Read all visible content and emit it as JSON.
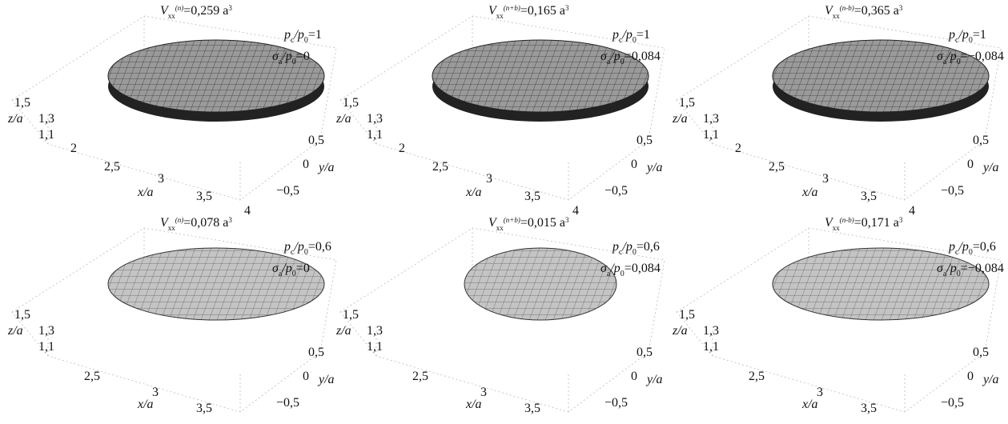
{
  "panels": [
    {
      "volume": [
        "V",
        "xx",
        "(n)",
        "=0,259 a",
        "3"
      ],
      "pressure": [
        "p",
        "c",
        "/p",
        "0",
        "=1"
      ],
      "stress": [
        "σ",
        "a",
        "/p",
        "0",
        "=0"
      ],
      "z_ticks": [
        "1,5",
        "1,3",
        "1,1"
      ],
      "x_ticks": [
        "2",
        "2,5",
        "3",
        "3,5",
        "4"
      ],
      "y_ticks": [
        "0,5",
        "0",
        "−0,5"
      ],
      "z_label": "z/a",
      "x_label": "x/a",
      "y_label": "y/a"
    },
    {
      "volume": [
        "V",
        "xx",
        "(n+b)",
        "=0,165 a",
        "3"
      ],
      "pressure": [
        "p",
        "c",
        "/p",
        "0",
        "=1"
      ],
      "stress": [
        "σ",
        "a",
        "/p",
        "0",
        "=0,084"
      ],
      "z_ticks": [
        "1,5",
        "1,3",
        "1,1"
      ],
      "x_ticks": [
        "2",
        "2,5",
        "3",
        "3,5",
        "4"
      ],
      "y_ticks": [
        "0,5",
        "0",
        "−0,5"
      ],
      "z_label": "z/a",
      "x_label": "x/a",
      "y_label": "y/a"
    },
    {
      "volume": [
        "V",
        "xx",
        "(n-b)",
        "=0,365 a",
        "3"
      ],
      "pressure": [
        "p",
        "c",
        "/p",
        "0",
        "=1"
      ],
      "stress": [
        "σ",
        "a",
        "/p",
        "0",
        "=−0,084"
      ],
      "z_ticks": [
        "1,5",
        "1,3",
        "1,1"
      ],
      "x_ticks": [
        "2",
        "2,5",
        "3",
        "3,5",
        "4"
      ],
      "y_ticks": [
        "0,5",
        "0",
        "−0,5"
      ],
      "z_label": "z/a",
      "x_label": "x/a",
      "y_label": "y/a"
    },
    {
      "volume": [
        "V",
        "xx",
        "(n)",
        "=0,078 a",
        "3"
      ],
      "pressure": [
        "p",
        "c",
        "/p",
        "0",
        "=0,6"
      ],
      "stress": [
        "σ",
        "a",
        "/p",
        "0",
        "=0"
      ],
      "z_ticks": [
        "1,5",
        "1,3",
        "1,1"
      ],
      "x_ticks": [
        "2,5",
        "3",
        "3,5"
      ],
      "y_ticks": [
        "0,5",
        "0",
        "−0,5"
      ],
      "z_label": "z/a",
      "x_label": "x/a",
      "y_label": "y/a"
    },
    {
      "volume": [
        "V",
        "xx",
        "(n+b)",
        "=0,015 a",
        "3"
      ],
      "pressure": [
        "p",
        "c",
        "/p",
        "0",
        "=0,6"
      ],
      "stress": [
        "σ",
        "a",
        "/p",
        "0",
        "=0,084"
      ],
      "z_ticks": [
        "1,5",
        "1,3",
        "1,1"
      ],
      "x_ticks": [
        "2,5",
        "3",
        "3,5"
      ],
      "y_ticks": [
        "0,5",
        "0",
        "−0,5"
      ],
      "z_label": "z/a",
      "x_label": "x/a",
      "y_label": "y/a"
    },
    {
      "volume": [
        "V",
        "xx",
        "(n-b)",
        "=0,171 a",
        "3"
      ],
      "pressure": [
        "p",
        "c",
        "/p",
        "0",
        "=0,6"
      ],
      "stress": [
        "σ",
        "a",
        "/p",
        "0",
        "=−0,084"
      ],
      "z_ticks": [
        "1,5",
        "1,3",
        "1,1"
      ],
      "x_ticks": [
        "2,5",
        "3",
        "3,5"
      ],
      "y_ticks": [
        "0,5",
        "0",
        "−0,5"
      ],
      "z_label": "z/a",
      "x_label": "x/a",
      "y_label": "y/a"
    }
  ]
}
